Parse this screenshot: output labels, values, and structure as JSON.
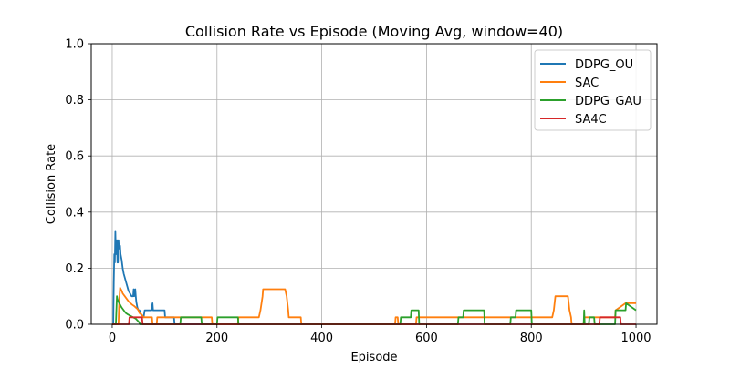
{
  "chart_data": {
    "type": "line",
    "title": "Collision Rate vs Episode (Moving Avg, window=40)",
    "xlabel": "Episode",
    "ylabel": "Collision Rate",
    "xlim": [
      -40,
      1040
    ],
    "ylim": [
      0,
      1.0
    ],
    "xticks": [
      0,
      200,
      400,
      600,
      800,
      1000
    ],
    "yticks": [
      0.0,
      0.2,
      0.4,
      0.6,
      0.8,
      1.0
    ],
    "xtick_labels": [
      "0",
      "200",
      "400",
      "600",
      "800",
      "1000"
    ],
    "ytick_labels": [
      "0.0",
      "0.2",
      "0.4",
      "0.6",
      "0.8",
      "1.0"
    ],
    "grid": true,
    "legend": "top-right",
    "series": [
      {
        "name": "DDPG_OU",
        "color": "#1f77b4",
        "x": [
          0,
          2,
          3,
          4,
          5,
          6,
          7,
          8,
          9,
          10,
          11,
          12,
          13,
          14,
          15,
          16,
          18,
          20,
          22,
          25,
          28,
          31,
          34,
          37,
          40,
          41,
          42,
          44,
          45,
          46,
          48,
          50,
          52,
          55,
          58,
          60,
          62,
          65,
          70,
          75,
          77,
          78,
          80,
          85,
          100,
          101,
          110,
          118,
          119,
          200
        ],
        "y": [
          0,
          0,
          0.15,
          0.25,
          0.22,
          0.33,
          0.25,
          0.25,
          0.3,
          0.22,
          0.22,
          0.3,
          0.27,
          0.27,
          0.28,
          0.25,
          0.23,
          0.2,
          0.18,
          0.16,
          0.14,
          0.12,
          0.11,
          0.1,
          0.1,
          0.125,
          0.1,
          0.125,
          0.1,
          0.08,
          0.06,
          0.05,
          0.05,
          0.035,
          0.03,
          0.025,
          0.05,
          0.05,
          0.05,
          0.05,
          0.075,
          0.05,
          0.05,
          0.05,
          0.05,
          0.025,
          0.025,
          0.025,
          0,
          0
        ]
      },
      {
        "name": "SAC",
        "color": "#ff7f0e",
        "x": [
          0,
          12,
          13,
          14,
          15,
          18,
          20,
          24,
          28,
          32,
          38,
          42,
          45,
          48,
          50,
          52,
          56,
          60,
          76,
          77,
          85,
          86,
          190,
          191,
          240,
          241,
          280,
          283,
          287,
          288,
          330,
          333,
          336,
          337,
          360,
          361,
          540,
          541,
          545,
          546,
          580,
          581,
          840,
          843,
          846,
          847,
          870,
          873,
          876,
          877,
          900,
          901,
          960,
          961,
          980,
          981,
          1000
        ],
        "y": [
          0,
          0,
          0.06,
          0.1,
          0.13,
          0.12,
          0.11,
          0.1,
          0.09,
          0.08,
          0.07,
          0.065,
          0.06,
          0.055,
          0.05,
          0.04,
          0.035,
          0.025,
          0.025,
          0,
          0,
          0.025,
          0.025,
          0,
          0,
          0.025,
          0.025,
          0.05,
          0.1,
          0.125,
          0.125,
          0.1,
          0.05,
          0.025,
          0.025,
          0,
          0,
          0.025,
          0.025,
          0,
          0,
          0.025,
          0.025,
          0.05,
          0.1,
          0.1,
          0.1,
          0.05,
          0.025,
          0,
          0,
          0.025,
          0.025,
          0.05,
          0.075,
          0.075,
          0.075
        ]
      },
      {
        "name": "DDPG_GAU",
        "color": "#2ca02c",
        "x": [
          0,
          7,
          8,
          9,
          10,
          12,
          15,
          18,
          22,
          26,
          30,
          35,
          40,
          45,
          50,
          52,
          53,
          130,
          131,
          170,
          171,
          200,
          201,
          240,
          241,
          550,
          551,
          570,
          571,
          585,
          586,
          660,
          661,
          670,
          671,
          710,
          711,
          760,
          761,
          770,
          771,
          800,
          801,
          900,
          901,
          902,
          910,
          911,
          920,
          921,
          960,
          961,
          980,
          981,
          1000
        ],
        "y": [
          0,
          0,
          0.05,
          0.1,
          0.09,
          0.08,
          0.07,
          0.06,
          0.05,
          0.04,
          0.035,
          0.03,
          0.025,
          0.02,
          0.01,
          0.005,
          0,
          0,
          0.025,
          0.025,
          0,
          0,
          0.025,
          0.025,
          0,
          0,
          0.025,
          0.025,
          0.05,
          0.05,
          0,
          0,
          0.025,
          0.025,
          0.05,
          0.05,
          0,
          0,
          0.025,
          0.025,
          0.05,
          0.05,
          0,
          0,
          0.05,
          0,
          0,
          0.025,
          0.025,
          0,
          0,
          0.05,
          0.05,
          0.075,
          0.05
        ]
      },
      {
        "name": "SA4C",
        "color": "#d62728",
        "x": [
          0,
          32,
          33,
          57,
          58,
          930,
          931,
          970,
          971,
          1000
        ],
        "y": [
          0,
          0,
          0.025,
          0.025,
          0,
          0,
          0.025,
          0.025,
          0,
          0
        ]
      }
    ]
  }
}
